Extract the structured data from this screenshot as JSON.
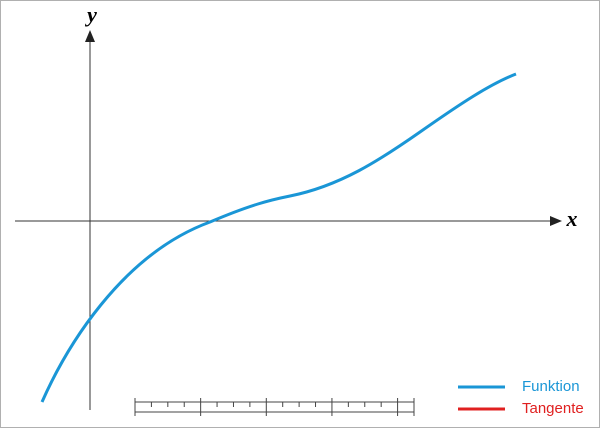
{
  "axes": {
    "x_label": "x",
    "y_label": "y"
  },
  "legend": [
    {
      "name": "Funktion",
      "color": "#1a96d6"
    },
    {
      "name": "Tangente",
      "color": "#e02020"
    }
  ]
}
